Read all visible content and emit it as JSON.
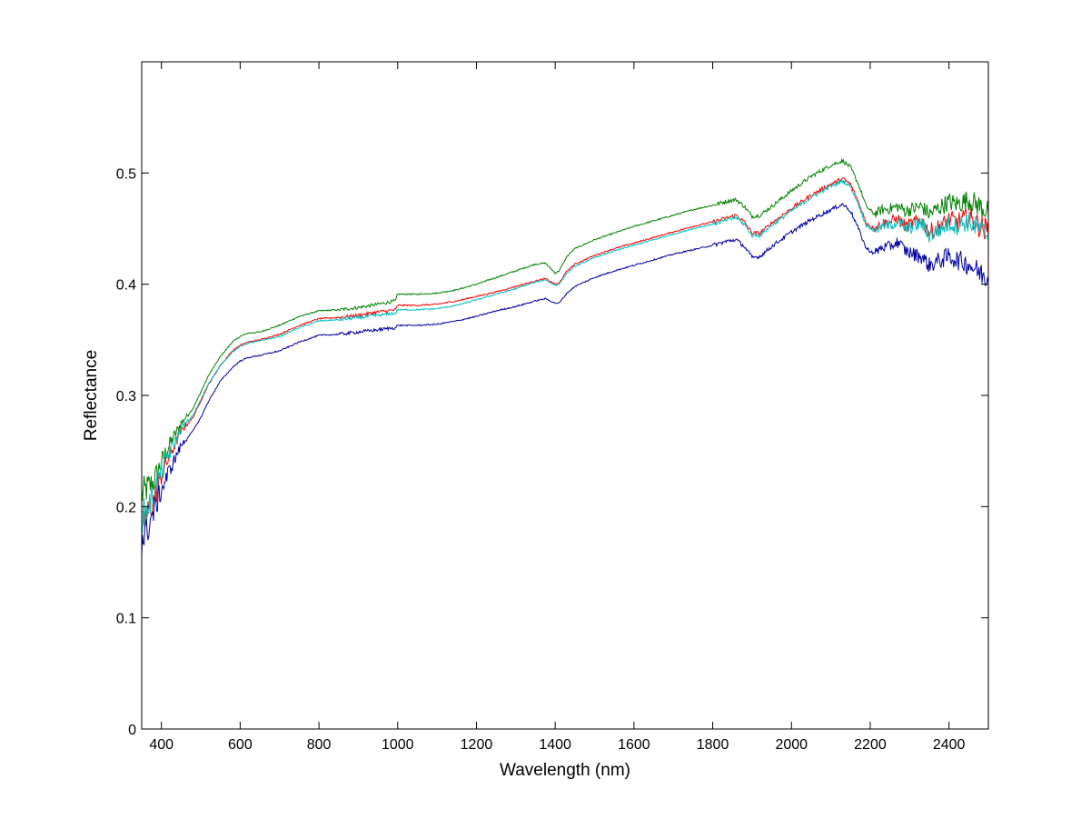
{
  "chart_data": {
    "type": "line",
    "title": "",
    "xlabel": "Wavelength (nm)",
    "ylabel": "Reflectance",
    "xlim": [
      350,
      2500
    ],
    "ylim": [
      0,
      0.6
    ],
    "xticks": [
      400,
      600,
      800,
      1000,
      1200,
      1400,
      1600,
      1800,
      2000,
      2200,
      2400
    ],
    "yticks": [
      0,
      0.1,
      0.2,
      0.3,
      0.4,
      0.5
    ],
    "ytick_labels": [
      "0",
      "0.1",
      "0.2",
      "0.3",
      "0.4",
      "0.5"
    ],
    "grid": false,
    "legend": null,
    "series": [
      {
        "color": "#008000",
        "x": [
          350,
          360,
          380,
          400,
          420,
          450,
          480,
          500,
          520,
          550,
          580,
          600,
          620,
          650,
          700,
          750,
          800,
          850,
          900,
          950,
          995,
          1000,
          1050,
          1100,
          1150,
          1200,
          1250,
          1300,
          1350,
          1375,
          1400,
          1410,
          1430,
          1450,
          1500,
          1550,
          1600,
          1650,
          1700,
          1750,
          1800,
          1820,
          1840,
          1860,
          1880,
          1900,
          1920,
          1950,
          2000,
          2050,
          2100,
          2130,
          2150,
          2170,
          2190,
          2210,
          2230,
          2250,
          2270,
          2290,
          2310,
          2330,
          2350,
          2380,
          2400,
          2420,
          2450,
          2480,
          2500
        ],
        "y": [
          0.21,
          0.215,
          0.222,
          0.24,
          0.255,
          0.275,
          0.288,
          0.303,
          0.318,
          0.335,
          0.348,
          0.353,
          0.356,
          0.357,
          0.363,
          0.371,
          0.376,
          0.377,
          0.379,
          0.382,
          0.385,
          0.391,
          0.391,
          0.392,
          0.395,
          0.4,
          0.406,
          0.412,
          0.418,
          0.419,
          0.41,
          0.412,
          0.425,
          0.432,
          0.44,
          0.446,
          0.452,
          0.457,
          0.462,
          0.467,
          0.471,
          0.473,
          0.475,
          0.476,
          0.47,
          0.461,
          0.462,
          0.47,
          0.484,
          0.497,
          0.507,
          0.511,
          0.505,
          0.49,
          0.47,
          0.463,
          0.467,
          0.468,
          0.47,
          0.466,
          0.468,
          0.47,
          0.463,
          0.47,
          0.474,
          0.472,
          0.476,
          0.47,
          0.465
        ]
      },
      {
        "color": "#ff0000",
        "x": [
          350,
          360,
          380,
          400,
          420,
          450,
          480,
          500,
          520,
          550,
          580,
          600,
          620,
          650,
          700,
          750,
          800,
          850,
          900,
          950,
          995,
          1000,
          1050,
          1100,
          1150,
          1200,
          1250,
          1300,
          1350,
          1375,
          1400,
          1410,
          1430,
          1450,
          1500,
          1550,
          1600,
          1650,
          1700,
          1750,
          1800,
          1820,
          1840,
          1860,
          1880,
          1900,
          1920,
          1950,
          2000,
          2050,
          2100,
          2130,
          2150,
          2170,
          2190,
          2210,
          2230,
          2250,
          2270,
          2290,
          2310,
          2330,
          2350,
          2380,
          2400,
          2420,
          2450,
          2480,
          2500
        ],
        "y": [
          0.18,
          0.19,
          0.205,
          0.228,
          0.245,
          0.268,
          0.28,
          0.295,
          0.31,
          0.327,
          0.34,
          0.345,
          0.348,
          0.35,
          0.355,
          0.363,
          0.369,
          0.37,
          0.372,
          0.375,
          0.377,
          0.381,
          0.381,
          0.382,
          0.385,
          0.389,
          0.393,
          0.398,
          0.403,
          0.405,
          0.4,
          0.401,
          0.412,
          0.418,
          0.426,
          0.432,
          0.437,
          0.442,
          0.447,
          0.452,
          0.456,
          0.458,
          0.46,
          0.462,
          0.456,
          0.446,
          0.446,
          0.455,
          0.468,
          0.48,
          0.49,
          0.495,
          0.49,
          0.474,
          0.455,
          0.45,
          0.455,
          0.456,
          0.459,
          0.452,
          0.455,
          0.458,
          0.447,
          0.452,
          0.458,
          0.456,
          0.46,
          0.452,
          0.448
        ]
      },
      {
        "color": "#00bfbf",
        "x": [
          350,
          360,
          380,
          400,
          420,
          450,
          480,
          500,
          520,
          550,
          580,
          600,
          620,
          650,
          700,
          750,
          800,
          850,
          900,
          950,
          995,
          1000,
          1050,
          1100,
          1150,
          1200,
          1250,
          1300,
          1350,
          1375,
          1400,
          1410,
          1430,
          1450,
          1500,
          1550,
          1600,
          1650,
          1700,
          1750,
          1800,
          1820,
          1840,
          1860,
          1880,
          1900,
          1920,
          1950,
          2000,
          2050,
          2100,
          2130,
          2150,
          2170,
          2190,
          2210,
          2230,
          2250,
          2270,
          2290,
          2310,
          2330,
          2350,
          2380,
          2400,
          2420,
          2450,
          2480,
          2500
        ],
        "y": [
          0.19,
          0.195,
          0.21,
          0.232,
          0.248,
          0.27,
          0.282,
          0.296,
          0.311,
          0.327,
          0.339,
          0.344,
          0.347,
          0.349,
          0.353,
          0.361,
          0.367,
          0.368,
          0.37,
          0.372,
          0.374,
          0.377,
          0.377,
          0.378,
          0.381,
          0.386,
          0.391,
          0.396,
          0.402,
          0.404,
          0.399,
          0.4,
          0.41,
          0.416,
          0.424,
          0.43,
          0.435,
          0.44,
          0.445,
          0.45,
          0.454,
          0.456,
          0.458,
          0.46,
          0.454,
          0.444,
          0.444,
          0.453,
          0.466,
          0.478,
          0.488,
          0.493,
          0.488,
          0.472,
          0.453,
          0.448,
          0.452,
          0.453,
          0.456,
          0.45,
          0.452,
          0.455,
          0.444,
          0.45,
          0.455,
          0.453,
          0.457,
          0.448,
          0.444
        ]
      },
      {
        "color": "#0000a0",
        "x": [
          350,
          360,
          380,
          400,
          420,
          450,
          480,
          500,
          520,
          550,
          580,
          600,
          620,
          650,
          700,
          750,
          800,
          850,
          900,
          950,
          995,
          1000,
          1050,
          1100,
          1150,
          1200,
          1250,
          1300,
          1350,
          1375,
          1400,
          1410,
          1430,
          1450,
          1500,
          1550,
          1600,
          1650,
          1700,
          1750,
          1800,
          1820,
          1840,
          1860,
          1880,
          1900,
          1920,
          1950,
          2000,
          2050,
          2100,
          2130,
          2150,
          2170,
          2190,
          2210,
          2230,
          2250,
          2270,
          2290,
          2310,
          2330,
          2350,
          2380,
          2400,
          2420,
          2450,
          2480,
          2500
        ],
        "y": [
          0.17,
          0.175,
          0.195,
          0.215,
          0.232,
          0.255,
          0.268,
          0.28,
          0.295,
          0.313,
          0.325,
          0.331,
          0.334,
          0.336,
          0.34,
          0.348,
          0.354,
          0.355,
          0.357,
          0.359,
          0.361,
          0.363,
          0.363,
          0.364,
          0.367,
          0.371,
          0.376,
          0.38,
          0.385,
          0.387,
          0.383,
          0.383,
          0.392,
          0.398,
          0.406,
          0.412,
          0.417,
          0.422,
          0.427,
          0.431,
          0.435,
          0.437,
          0.439,
          0.44,
          0.434,
          0.424,
          0.425,
          0.434,
          0.447,
          0.458,
          0.467,
          0.472,
          0.466,
          0.45,
          0.432,
          0.428,
          0.433,
          0.434,
          0.438,
          0.43,
          0.427,
          0.425,
          0.417,
          0.422,
          0.425,
          0.422,
          0.418,
          0.41,
          0.405
        ]
      }
    ]
  }
}
